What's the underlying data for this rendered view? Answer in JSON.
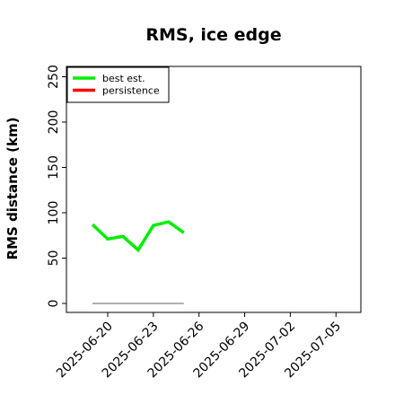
{
  "chart_data": {
    "type": "line",
    "title": "RMS, ice edge",
    "ylabel": "RMS distance (km)",
    "xlabel": "",
    "ylim": [
      0,
      260
    ],
    "yticks": [
      0,
      50,
      100,
      150,
      200,
      250
    ],
    "xlim": [
      "2025-06-18",
      "2025-07-06"
    ],
    "xticks": [
      "2025-06-20",
      "2025-06-23",
      "2025-06-26",
      "2025-06-29",
      "2025-07-02",
      "2025-07-05"
    ],
    "grid": false,
    "legend": "top-left",
    "series": [
      {
        "name": "best est.",
        "color": "#00ee00",
        "x": [
          "2025-06-19",
          "2025-06-20",
          "2025-06-21",
          "2025-06-22",
          "2025-06-23",
          "2025-06-24",
          "2025-06-25"
        ],
        "y": [
          87,
          71,
          74,
          59,
          86,
          90,
          78
        ]
      },
      {
        "name": "persistence",
        "color": "#ff0000",
        "x": [],
        "y": []
      }
    ],
    "baseline": {
      "color": "#808080",
      "x": [
        "2025-06-19",
        "2025-06-25"
      ],
      "y": [
        0,
        0
      ]
    }
  }
}
